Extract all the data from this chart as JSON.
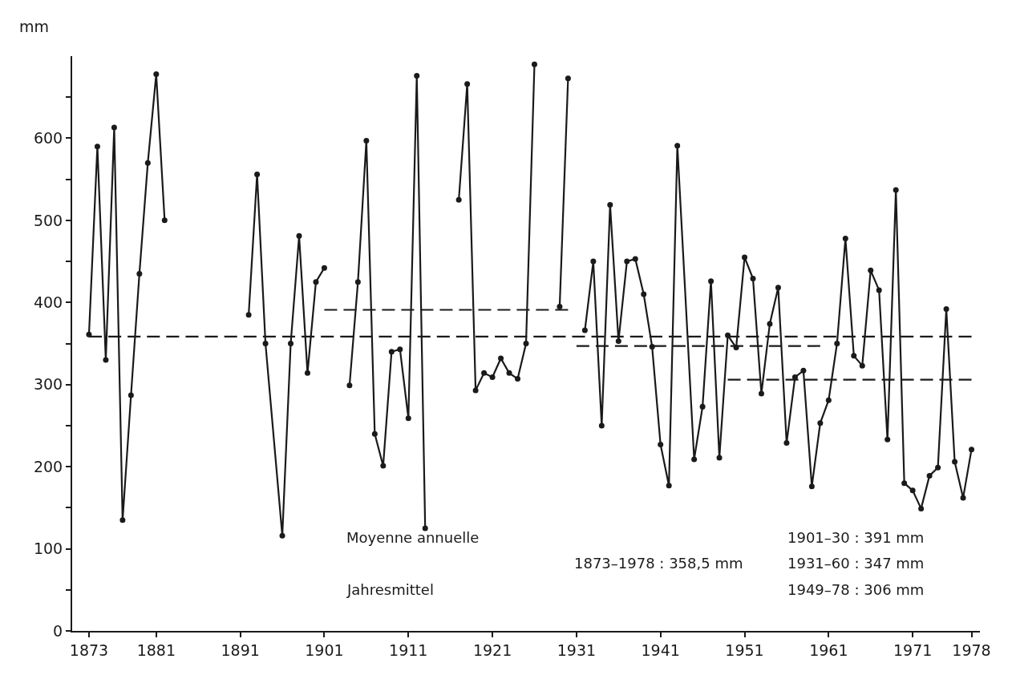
{
  "chart_data": {
    "type": "line",
    "ylabel": "mm",
    "xlim": [
      1871,
      1979
    ],
    "xticks": [
      1873,
      1881,
      1891,
      1901,
      1911,
      1921,
      1931,
      1941,
      1951,
      1961,
      1971,
      1978
    ],
    "ylim": [
      0,
      700
    ],
    "yticks": [
      0,
      {
        "value": 50,
        "label": null
      },
      100,
      {
        "value": 150,
        "label": null
      },
      200,
      {
        "value": 250,
        "label": null
      },
      300,
      {
        "value": 350,
        "label": null
      },
      400,
      {
        "value": 450,
        "label": null
      },
      500,
      {
        "value": 550,
        "label": null
      },
      600,
      {
        "value": 650,
        "label": null
      }
    ],
    "marker": "circle",
    "series": [
      {
        "color": "#1a1a1a",
        "line_style": "solid",
        "x": [
          1873,
          1874,
          1875,
          1876,
          1877,
          1878,
          1879,
          1880,
          1881,
          1882,
          1887,
          1892,
          1893,
          1894,
          1896,
          1897,
          1898,
          1899,
          1900,
          1901,
          1902,
          1904,
          1905,
          1906,
          1907,
          1908,
          1909,
          1910,
          1911,
          1912,
          1913,
          1915,
          1917,
          1918,
          1919,
          1920,
          1921,
          1922,
          1923,
          1924,
          1925,
          1926,
          1928,
          1929,
          1930,
          1931,
          1932,
          1933,
          1934,
          1935,
          1936,
          1937,
          1938,
          1939,
          1940,
          1941,
          1942,
          1943,
          1945,
          1946,
          1947,
          1948,
          1949,
          1950,
          1951,
          1952,
          1953,
          1954,
          1955,
          1956,
          1957,
          1958,
          1959,
          1960,
          1961,
          1962,
          1963,
          1964,
          1965,
          1966,
          1967,
          1968,
          1969,
          1970,
          1971,
          1972,
          1973,
          1974,
          1975,
          1976,
          1977,
          1978
        ],
        "values": [
          361,
          590,
          330,
          613,
          135,
          287,
          435,
          570,
          678,
          500,
          null,
          385,
          556,
          350,
          116,
          350,
          481,
          314,
          425,
          442,
          null,
          299,
          425,
          597,
          240,
          201,
          340,
          343,
          259,
          676,
          125,
          null,
          525,
          666,
          293,
          314,
          309,
          332,
          314,
          307,
          350,
          690,
          null,
          395,
          673,
          null,
          366,
          450,
          250,
          519,
          353,
          450,
          453,
          410,
          346,
          227,
          177,
          591,
          209,
          273,
          426,
          211,
          360,
          345,
          455,
          429,
          289,
          374,
          418,
          229,
          309,
          317,
          176,
          253,
          281,
          350,
          478,
          335,
          323,
          439,
          415,
          233,
          537,
          180,
          171,
          149,
          189,
          199,
          392,
          206,
          162,
          221
        ]
      },
      {
        "type": "line",
        "marker": "none",
        "line_style": "dashed",
        "color": "#1a1a1a",
        "x": [
          1873,
          1978
        ],
        "values": [
          358.5,
          358.5
        ]
      },
      {
        "type": "line",
        "marker": "none",
        "line_style": "dashed",
        "color": "#1a1a1a",
        "x": [
          1901,
          1930
        ],
        "values": [
          391,
          391
        ]
      },
      {
        "type": "line",
        "marker": "none",
        "line_style": "dashed",
        "color": "#1a1a1a",
        "x": [
          1931,
          1960
        ],
        "values": [
          347,
          347
        ]
      },
      {
        "type": "line",
        "marker": "none",
        "line_style": "dashed",
        "color": "#1a1a1a",
        "x": [
          1949,
          1978
        ],
        "values": [
          306,
          306
        ]
      }
    ],
    "annotations": [
      "Moyenne annuelle",
      "Jahresmittel",
      "1873–1978 : 358,5 mm",
      "1901–30 : 391 mm",
      "1931–60 : 347 mm",
      "1949–78 : 306 mm"
    ]
  }
}
